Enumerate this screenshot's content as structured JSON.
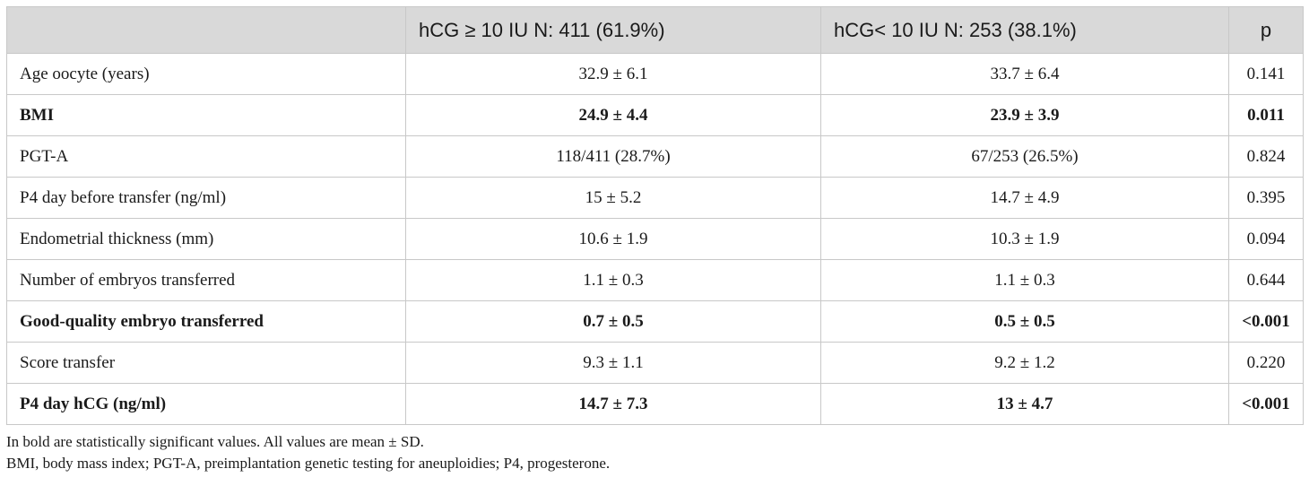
{
  "chart_data": {
    "type": "table",
    "columns": [
      "",
      "hCG ≥ 10 IU N: 411 (61.9%)",
      "hCG< 10 IU N: 253 (38.1%)",
      "p"
    ],
    "rows": [
      {
        "label": "Age oocyte (years)",
        "g1": "32.9 ± 6.1",
        "g2": "33.7 ± 6.4",
        "p": "0.141",
        "bold": false
      },
      {
        "label": "BMI",
        "g1": "24.9 ± 4.4",
        "g2": "23.9 ± 3.9",
        "p": "0.011",
        "bold": true
      },
      {
        "label": "PGT-A",
        "g1": "118/411 (28.7%)",
        "g2": "67/253 (26.5%)",
        "p": "0.824",
        "bold": false
      },
      {
        "label": "P4 day before transfer (ng/ml)",
        "g1": "15 ± 5.2",
        "g2": "14.7 ± 4.9",
        "p": "0.395",
        "bold": false
      },
      {
        "label": "Endometrial thickness (mm)",
        "g1": "10.6 ± 1.9",
        "g2": "10.3 ± 1.9",
        "p": "0.094",
        "bold": false
      },
      {
        "label": "Number of embryos transferred",
        "g1": "1.1 ± 0.3",
        "g2": "1.1 ± 0.3",
        "p": "0.644",
        "bold": false
      },
      {
        "label": "Good-quality embryo transferred",
        "g1": "0.7 ± 0.5",
        "g2": "0.5 ± 0.5",
        "p": "<0.001",
        "bold": true
      },
      {
        "label": "Score transfer",
        "g1": "9.3 ± 1.1",
        "g2": "9.2 ± 1.2",
        "p": "0.220",
        "bold": false
      },
      {
        "label": "P4 day hCG (ng/ml)",
        "g1": "14.7 ± 7.3",
        "g2": "13 ± 4.7",
        "p": "<0.001",
        "bold": true
      }
    ],
    "notes": [
      "In bold are statistically significant values. All values are mean ± SD.",
      "BMI, body mass index; PGT-A, preimplantation genetic testing for aneuploidies; P4, progesterone."
    ]
  },
  "colors": {
    "header_bg": "#d9d9d9",
    "border": "#c8c8c8",
    "text": "#1a1a1a"
  }
}
